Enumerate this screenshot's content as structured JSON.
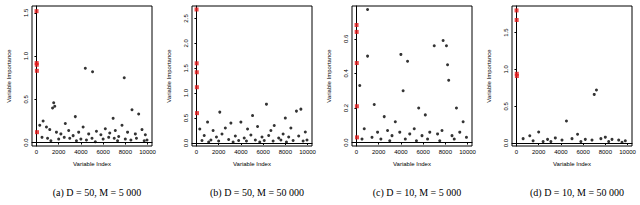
{
  "chart_data": [
    {
      "type": "scatter",
      "caption": "(a) D = 50, M = 5 000",
      "x_label": "Variable Index",
      "y_label": "Variable Importance",
      "xlim": [
        -400,
        10400
      ],
      "xticks": [
        0,
        2000,
        4000,
        6000,
        8000,
        10000
      ],
      "ylim": [
        -0.04,
        1.58
      ],
      "yticks": [
        {
          "value": 0,
          "label": "0.0"
        },
        {
          "value": 0.5,
          "label": "0.5"
        },
        {
          "value": 1,
          "label": "1.0"
        },
        {
          "value": 1.5,
          "label": "1.5"
        }
      ],
      "series": [
        {
          "color": "#000000",
          "marker": "circle",
          "values": [
            [
              4400,
              0.86
            ],
            [
              5050,
              0.82
            ],
            [
              7900,
              0.75
            ],
            [
              1550,
              0.46
            ],
            [
              1450,
              0.4
            ],
            [
              1650,
              0.42
            ],
            [
              3500,
              0.3
            ],
            [
              8600,
              0.38
            ],
            [
              6900,
              0.28
            ],
            [
              9200,
              0.33
            ],
            [
              2600,
              0.22
            ],
            [
              600,
              0.25
            ],
            [
              300,
              0.2
            ],
            [
              900,
              0.18
            ],
            [
              1200,
              0.15
            ],
            [
              1800,
              0.12
            ],
            [
              2200,
              0.1
            ],
            [
              2900,
              0.14
            ],
            [
              3300,
              0.08
            ],
            [
              3800,
              0.12
            ],
            [
              4200,
              0.18
            ],
            [
              4700,
              0.1
            ],
            [
              5400,
              0.13
            ],
            [
              5800,
              0.09
            ],
            [
              6200,
              0.16
            ],
            [
              6600,
              0.11
            ],
            [
              7100,
              0.14
            ],
            [
              7400,
              0.07
            ],
            [
              7700,
              0.2
            ],
            [
              8200,
              0.12
            ],
            [
              8900,
              0.1
            ],
            [
              9500,
              0.15
            ],
            [
              9800,
              0.09
            ],
            [
              500,
              0.06
            ],
            [
              1000,
              0.05
            ],
            [
              2000,
              0.04
            ],
            [
              3000,
              0.05
            ],
            [
              4000,
              0.04
            ],
            [
              5000,
              0.05
            ],
            [
              6000,
              0.04
            ],
            [
              7000,
              0.05
            ],
            [
              8000,
              0.04
            ],
            [
              9000,
              0.05
            ],
            [
              9950,
              0.03
            ],
            [
              2500,
              0.06
            ],
            [
              4500,
              0.03
            ],
            [
              6500,
              0.06
            ],
            [
              8500,
              0.03
            ],
            [
              9700,
              0.02
            ],
            [
              1300,
              0.02
            ],
            [
              3600,
              0.02
            ],
            [
              5300,
              0.01
            ],
            [
              7300,
              0.02
            ]
          ]
        },
        {
          "color": "#e41a1c",
          "marker": "square",
          "values": [
            [
              10,
              1.52
            ],
            [
              20,
              0.92
            ],
            [
              30,
              0.9
            ],
            [
              40,
              0.83
            ],
            [
              50,
              0.12
            ]
          ]
        }
      ]
    },
    {
      "type": "scatter",
      "caption": "(b) D = 50, M = 50 000",
      "x_label": "Variable Index",
      "y_label": "Variable Importance",
      "xlim": [
        -400,
        10400
      ],
      "xticks": [
        0,
        2000,
        4000,
        6000,
        8000,
        10000
      ],
      "ylim": [
        -0.06,
        2.75
      ],
      "yticks": [
        {
          "value": 0,
          "label": "0.0"
        },
        {
          "value": 0.5,
          "label": "0.5"
        },
        {
          "value": 1,
          "label": "1.0"
        },
        {
          "value": 1.5,
          "label": "1.5"
        },
        {
          "value": 2,
          "label": "2.0"
        },
        {
          "value": 2.5,
          "label": "2.5"
        }
      ],
      "series": [
        {
          "color": "#000000",
          "marker": "circle",
          "values": [
            [
              6300,
              0.78
            ],
            [
              9400,
              0.68
            ],
            [
              9000,
              0.64
            ],
            [
              2100,
              0.62
            ],
            [
              5050,
              0.55
            ],
            [
              8000,
              0.5
            ],
            [
              4000,
              0.42
            ],
            [
              3100,
              0.4
            ],
            [
              1000,
              0.42
            ],
            [
              7000,
              0.35
            ],
            [
              5500,
              0.33
            ],
            [
              2600,
              0.3
            ],
            [
              300,
              0.28
            ],
            [
              1500,
              0.25
            ],
            [
              4600,
              0.28
            ],
            [
              6700,
              0.25
            ],
            [
              8500,
              0.3
            ],
            [
              9800,
              0.22
            ],
            [
              700,
              0.15
            ],
            [
              1800,
              0.12
            ],
            [
              2300,
              0.18
            ],
            [
              3500,
              0.14
            ],
            [
              4300,
              0.1
            ],
            [
              4900,
              0.16
            ],
            [
              5900,
              0.12
            ],
            [
              6500,
              0.15
            ],
            [
              7400,
              0.1
            ],
            [
              7800,
              0.18
            ],
            [
              8300,
              0.12
            ],
            [
              9200,
              0.14
            ],
            [
              500,
              0.05
            ],
            [
              1300,
              0.06
            ],
            [
              2000,
              0.04
            ],
            [
              2900,
              0.07
            ],
            [
              3800,
              0.05
            ],
            [
              4500,
              0.04
            ],
            [
              5300,
              0.06
            ],
            [
              6100,
              0.05
            ],
            [
              6900,
              0.04
            ],
            [
              7600,
              0.06
            ],
            [
              8700,
              0.05
            ],
            [
              9600,
              0.04
            ],
            [
              9950,
              0.06
            ],
            [
              1100,
              0.02
            ],
            [
              3300,
              0.02
            ],
            [
              5700,
              0.02
            ],
            [
              8100,
              0.02
            ]
          ]
        },
        {
          "color": "#e41a1c",
          "marker": "square",
          "values": [
            [
              10,
              2.68
            ],
            [
              20,
              1.6
            ],
            [
              30,
              1.42
            ],
            [
              40,
              1.12
            ],
            [
              50,
              0.6
            ]
          ]
        }
      ]
    },
    {
      "type": "scatter",
      "caption": "(c) D = 10, M = 5 000",
      "x_label": "Variable Index",
      "y_label": "Variable Importance",
      "xlim": [
        -400,
        10400
      ],
      "xticks": [
        0,
        2000,
        4000,
        6000,
        8000,
        10000
      ],
      "ylim": [
        -0.02,
        0.79
      ],
      "yticks": [
        {
          "value": 0,
          "label": "0.0"
        },
        {
          "value": 0.2,
          "label": "0.2"
        },
        {
          "value": 0.4,
          "label": "0.4"
        },
        {
          "value": 0.6,
          "label": "0.6"
        }
      ],
      "series": [
        {
          "color": "#000000",
          "marker": "circle",
          "values": [
            [
              1000,
              0.77
            ],
            [
              1000,
              0.5
            ],
            [
              4000,
              0.51
            ],
            [
              4600,
              0.47
            ],
            [
              7000,
              0.56
            ],
            [
              7800,
              0.59
            ],
            [
              8100,
              0.56
            ],
            [
              8200,
              0.45
            ],
            [
              8300,
              0.36
            ],
            [
              1600,
              0.22
            ],
            [
              9000,
              0.2
            ],
            [
              5600,
              0.2
            ],
            [
              300,
              0.33
            ],
            [
              2500,
              0.15
            ],
            [
              3500,
              0.12
            ],
            [
              6200,
              0.16
            ],
            [
              4200,
              0.3
            ],
            [
              9600,
              0.12
            ],
            [
              700,
              0.08
            ],
            [
              1900,
              0.06
            ],
            [
              2800,
              0.07
            ],
            [
              3200,
              0.04
            ],
            [
              3900,
              0.06
            ],
            [
              4800,
              0.05
            ],
            [
              5200,
              0.08
            ],
            [
              5900,
              0.04
            ],
            [
              6600,
              0.06
            ],
            [
              7300,
              0.05
            ],
            [
              7700,
              0.07
            ],
            [
              8600,
              0.04
            ],
            [
              9300,
              0.06
            ],
            [
              9900,
              0.03
            ],
            [
              500,
              0.02
            ],
            [
              1400,
              0.03
            ],
            [
              2200,
              0.02
            ],
            [
              3000,
              0.01
            ],
            [
              4400,
              0.02
            ],
            [
              5400,
              0.01
            ],
            [
              6400,
              0.02
            ],
            [
              7500,
              0.01
            ],
            [
              8800,
              0.02
            ]
          ]
        },
        {
          "color": "#e41a1c",
          "marker": "square",
          "values": [
            [
              10,
              0.68
            ],
            [
              20,
              0.64
            ],
            [
              30,
              0.46
            ],
            [
              40,
              0.21
            ],
            [
              50,
              0.03
            ]
          ]
        }
      ]
    },
    {
      "type": "scatter",
      "caption": "(d) D = 10, M = 50 000",
      "x_label": "Variable Index",
      "y_label": "Variable Importance",
      "xlim": [
        -400,
        10400
      ],
      "xticks": [
        0,
        2000,
        4000,
        6000,
        8000,
        10000
      ],
      "ylim": [
        -0.04,
        1.86
      ],
      "yticks": [
        {
          "value": 0,
          "label": "0.0"
        },
        {
          "value": 0.5,
          "label": "0.5"
        },
        {
          "value": 1,
          "label": "1.0"
        },
        {
          "value": 1.5,
          "label": "1.5"
        }
      ],
      "series": [
        {
          "color": "#000000",
          "marker": "circle",
          "values": [
            [
              7200,
              0.72
            ],
            [
              7000,
              0.66
            ],
            [
              4500,
              0.3
            ],
            [
              2000,
              0.15
            ],
            [
              5500,
              0.12
            ],
            [
              1200,
              0.1
            ],
            [
              8000,
              0.08
            ],
            [
              600,
              0.06
            ],
            [
              2800,
              0.05
            ],
            [
              3500,
              0.07
            ],
            [
              4100,
              0.04
            ],
            [
              5000,
              0.06
            ],
            [
              6200,
              0.05
            ],
            [
              6800,
              0.04
            ],
            [
              7600,
              0.06
            ],
            [
              8600,
              0.05
            ],
            [
              9200,
              0.04
            ],
            [
              9800,
              0.03
            ],
            [
              1500,
              0.03
            ],
            [
              2400,
              0.02
            ],
            [
              3100,
              0.02
            ],
            [
              5800,
              0.02
            ],
            [
              8300,
              0.02
            ],
            [
              9500,
              0.01
            ]
          ]
        },
        {
          "color": "#e41a1c",
          "marker": "square",
          "values": [
            [
              10,
              1.8
            ],
            [
              20,
              1.67
            ],
            [
              30,
              0.94
            ],
            [
              40,
              0.91
            ]
          ]
        }
      ]
    }
  ]
}
